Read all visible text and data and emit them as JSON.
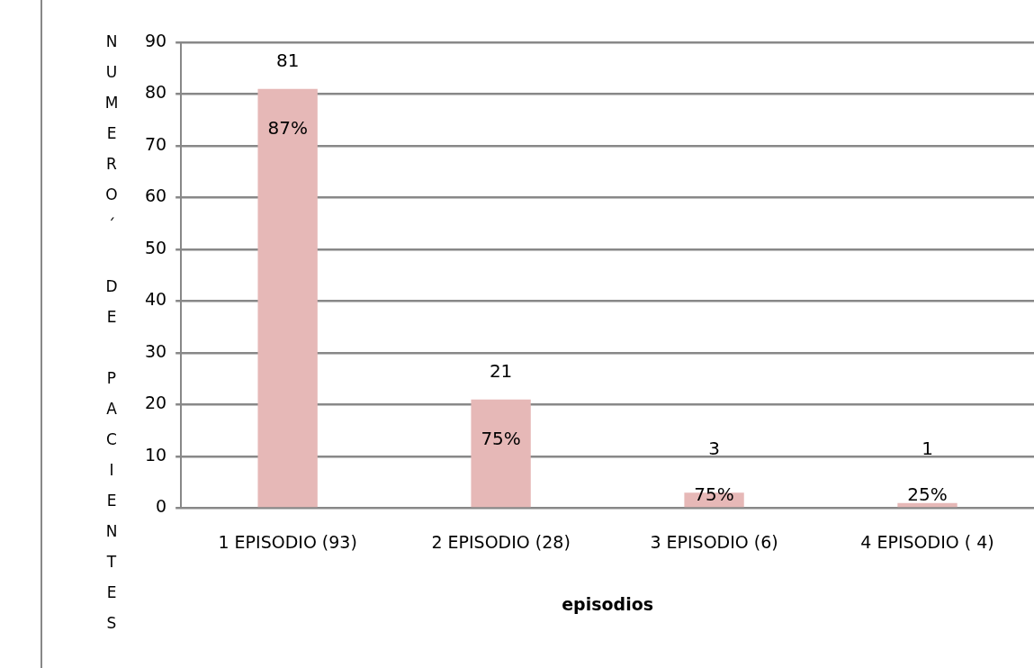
{
  "chart_data": {
    "type": "bar",
    "xlabel": "episodios",
    "ylabel": "NUMERO´ DE PACIENTES",
    "categories": [
      "1 EPISODIO (93)",
      "2 EPISODIO (28)",
      "3 EPISODIO (6)",
      "4 EPISODIO ( 4)"
    ],
    "values": [
      81,
      21,
      3,
      1
    ],
    "color": "#e6b8b7",
    "ylim": [
      0,
      90
    ],
    "yticks": [
      0,
      10,
      20,
      30,
      40,
      50,
      60,
      70,
      80,
      90
    ],
    "grid": "y",
    "legend": false,
    "data_labels": true,
    "annotations": [
      {
        "text": "87%",
        "x": "1 EPISODIO (93)",
        "y": 81
      },
      {
        "text": "75%",
        "x": "2 EPISODIO (28)",
        "y": 21
      },
      {
        "text": "75%",
        "x": "3 EPISODIO (6)",
        "y": 3
      },
      {
        "text": "25%",
        "x": "4 EPISODIO ( 4)",
        "y": 1
      }
    ]
  }
}
